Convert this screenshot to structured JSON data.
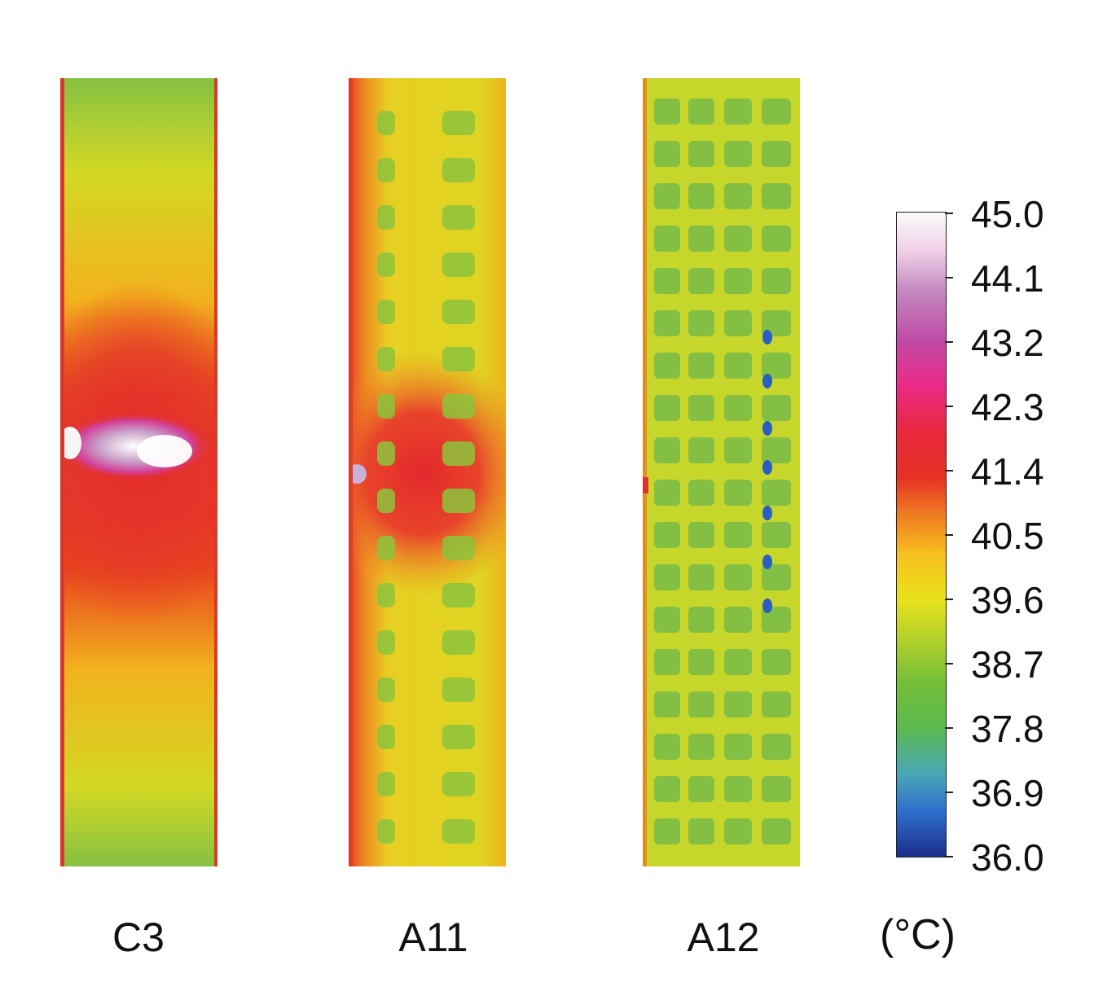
{
  "panels": [
    {
      "id": "c3",
      "label": "C3"
    },
    {
      "id": "a11",
      "label": "A11"
    },
    {
      "id": "a12",
      "label": "A12"
    }
  ],
  "colorbar": {
    "ticks": [
      "45.0",
      "44.1",
      "43.2",
      "42.3",
      "41.4",
      "40.5",
      "39.6",
      "38.7",
      "37.8",
      "36.9",
      "36.0"
    ],
    "unit": "(°C)",
    "range": [
      36.0,
      45.0
    ]
  },
  "colors": {
    "white_hot": "#fbfbfb",
    "magenta": "#c04aa6",
    "red": "#e53023",
    "orange": "#ef7c22",
    "yellow": "#e9e21b",
    "green": "#5cb94f",
    "cyan": "#4aa8b4",
    "blue": "#1c2e8c"
  }
}
